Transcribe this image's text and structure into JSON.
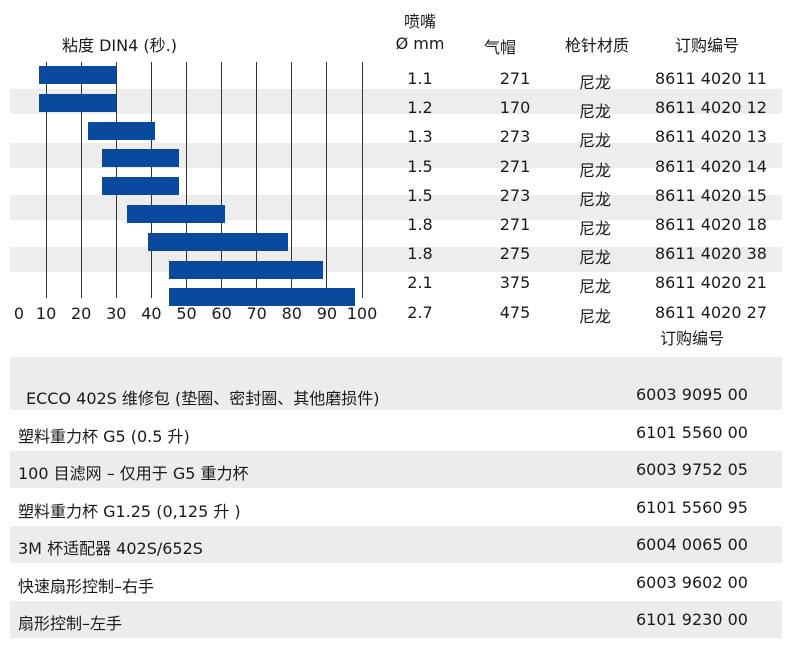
{
  "chart": {
    "title": "粘度 DIN4 (秒.)",
    "x_ticks": [
      "0",
      "10",
      "20",
      "30",
      "40",
      "50",
      "60",
      "70",
      "80",
      "90",
      "100"
    ]
  },
  "headers": {
    "nozzle_line1": "喷嘴",
    "nozzle_line2": "Ø mm",
    "aircap": "气帽",
    "material": "枪针材质",
    "order": "订购编号",
    "order_below": "订购编号"
  },
  "chart_data": {
    "type": "bar",
    "orientation": "horizontal-range",
    "title": "粘度 DIN4 (秒.)",
    "xlim": [
      0,
      100
    ],
    "grid": true,
    "categories": [
      "1.1",
      "1.2",
      "1.3",
      "1.5",
      "1.5",
      "1.8",
      "1.8",
      "2.1",
      "2.7"
    ],
    "ranges": [
      [
        8,
        30
      ],
      [
        8,
        30
      ],
      [
        22,
        41
      ],
      [
        26,
        48
      ],
      [
        26,
        48
      ],
      [
        33,
        61
      ],
      [
        39,
        79
      ],
      [
        45,
        89
      ],
      [
        45,
        98
      ]
    ]
  },
  "rows": [
    {
      "nozzle": "1.1",
      "aircap": "271",
      "material": "尼龙",
      "order": "8611 4020 11"
    },
    {
      "nozzle": "1.2",
      "aircap": "170",
      "material": "尼龙",
      "order": "8611 4020 12"
    },
    {
      "nozzle": "1.3",
      "aircap": "273",
      "material": "尼龙",
      "order": "8611 4020 13"
    },
    {
      "nozzle": "1.5",
      "aircap": "271",
      "material": "尼龙",
      "order": "8611 4020 14"
    },
    {
      "nozzle": "1.5",
      "aircap": "273",
      "material": "尼龙",
      "order": "8611 4020 15"
    },
    {
      "nozzle": "1.8",
      "aircap": "271",
      "material": "尼龙",
      "order": "8611 4020 18"
    },
    {
      "nozzle": "1.8",
      "aircap": "275",
      "material": "尼龙",
      "order": "8611 4020 38"
    },
    {
      "nozzle": "2.1",
      "aircap": "375",
      "material": "尼龙",
      "order": "8611 4020 21"
    },
    {
      "nozzle": "2.7",
      "aircap": "475",
      "material": "尼龙",
      "order": "8611 4020 27"
    }
  ],
  "accessories": [
    {
      "label": "ECCO 402S 维修包 (垫圈、密封圈、其他磨损件)",
      "code": "6003 9095 00"
    },
    {
      "label": "塑料重力杯 G5 (0.5 升)",
      "code": "6101 5560 00"
    },
    {
      "label": "100 目滤网 – 仅用于 G5 重力杯",
      "code": "6003 9752 05"
    },
    {
      "label": "塑料重力杯 G1.25 (0,125 升 )",
      "code": "6101 5560 95"
    },
    {
      "label": "3M 杯适配器 402S/652S",
      "code": "6004 0065 00"
    },
    {
      "label": "快速扇形控制–右手",
      "code": "6003 9602 00"
    },
    {
      "label": "扇形控制–左手",
      "code": "6101 9230 00"
    }
  ]
}
